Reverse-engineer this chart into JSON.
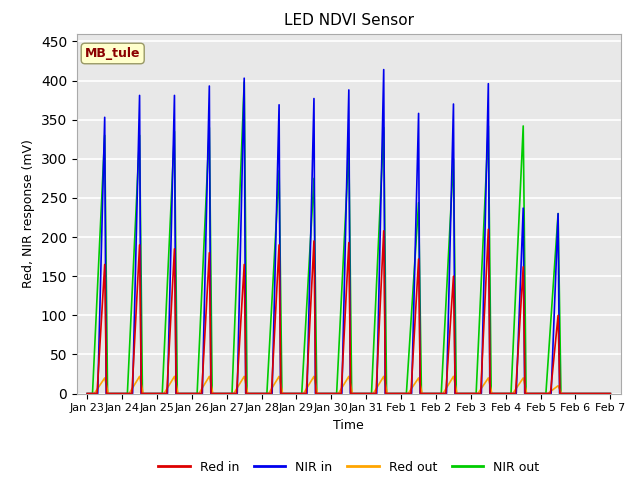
{
  "title": "LED NDVI Sensor",
  "xlabel": "Time",
  "ylabel": "Red, NIR response (mV)",
  "ylim": [
    0,
    460
  ],
  "yticks": [
    0,
    50,
    100,
    150,
    200,
    250,
    300,
    350,
    400,
    450
  ],
  "annotation_text": "MB_tule",
  "annotation_color": "#8B0000",
  "annotation_bg": "#FFFFCC",
  "annotation_border": "#999966",
  "colors": {
    "red_in": "#DD0000",
    "nir_in": "#0000EE",
    "red_out": "#FFA500",
    "nir_out": "#00CC00"
  },
  "background_color": "#E8E8E8",
  "x_tick_labels": [
    "Jan 23",
    "Jan 24",
    "Jan 25",
    "Jan 26",
    "Jan 27",
    "Jan 28",
    "Jan 29",
    "Jan 30",
    "Jan 31",
    "Feb 1",
    "Feb 2",
    "Feb 3",
    "Feb 4",
    "Feb 5",
    "Feb 6",
    "Feb 7"
  ],
  "spike_peaks_red_in": [
    165,
    190,
    185,
    180,
    165,
    190,
    195,
    193,
    208,
    172,
    150,
    210,
    162,
    100,
    0
  ],
  "spike_peaks_nir_in": [
    353,
    381,
    381,
    393,
    403,
    369,
    377,
    388,
    414,
    358,
    370,
    396,
    237,
    230,
    0
  ],
  "spike_peaks_red_out": [
    20,
    22,
    22,
    22,
    22,
    22,
    22,
    22,
    22,
    20,
    22,
    20,
    20,
    10,
    0
  ],
  "spike_peaks_nir_out": [
    330,
    330,
    335,
    340,
    398,
    285,
    275,
    313,
    340,
    244,
    300,
    342,
    342,
    230,
    0
  ],
  "spike_offsets": [
    0.5,
    0.5,
    0.5,
    0.5,
    0.5,
    0.5,
    0.5,
    0.5,
    0.5,
    0.5,
    0.5,
    0.5,
    0.5,
    0.5,
    0.5
  ]
}
